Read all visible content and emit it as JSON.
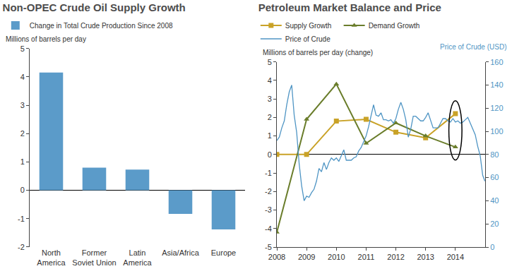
{
  "chart_data": [
    {
      "type": "bar",
      "title": "Non-OPEC Crude Oil Supply Growth",
      "ylabel": "Millions of barrels per day",
      "categories": [
        "North America",
        "Former Soviet Union",
        "Latin America",
        "Asia/Africa",
        "Europe"
      ],
      "series": [
        {
          "name": "Change in Total Crude Production Since 2008",
          "color": "#5b9bc9",
          "values": [
            4.15,
            0.8,
            0.73,
            -0.83,
            -1.38
          ]
        }
      ],
      "ylim": [
        -2,
        5
      ],
      "yticks": [
        -2,
        -1,
        0,
        1,
        2,
        3,
        4,
        5
      ],
      "grid": false,
      "legend": "top left"
    },
    {
      "type": "line",
      "title": "Petroleum Market Balance and Price",
      "ylabel": "Millions of barrels per day (change)",
      "y2label": "Price of Crude (USD)",
      "xlim": [
        2008,
        2015
      ],
      "xticks": [
        2008,
        2009,
        2010,
        2011,
        2012,
        2013,
        2014
      ],
      "ylim": [
        -5,
        5
      ],
      "yticks": [
        -5,
        -4,
        -3,
        -2,
        -1,
        0,
        1,
        2,
        3,
        4,
        5
      ],
      "y2lim": [
        0,
        160
      ],
      "y2ticks": [
        0,
        20,
        40,
        60,
        80,
        100,
        120,
        140,
        160
      ],
      "grid": false,
      "legend": "top left",
      "series": [
        {
          "name": "Supply Growth",
          "color": "#c9a227",
          "type": "line",
          "marker": "square",
          "x": [
            2008,
            2009,
            2010,
            2011,
            2012,
            2013,
            2014
          ],
          "values": [
            0,
            0,
            1.8,
            1.9,
            1.2,
            0.9,
            2.2
          ]
        },
        {
          "name": "Demand Growth",
          "color": "#6a7d2b",
          "type": "line",
          "marker": "triangle",
          "x": [
            2008,
            2009,
            2010,
            2011,
            2012,
            2013,
            2014
          ],
          "values": [
            -4.2,
            1.9,
            3.8,
            0.6,
            1.7,
            1.0,
            0.4
          ]
        },
        {
          "name": "Price of Crude",
          "color": "#4f95c4",
          "type": "line",
          "axis": "y2",
          "x": [
            2008,
            2008.083,
            2008.167,
            2008.25,
            2008.333,
            2008.417,
            2008.5,
            2008.583,
            2008.667,
            2008.75,
            2008.833,
            2008.917,
            2009,
            2009.083,
            2009.167,
            2009.25,
            2009.333,
            2009.417,
            2009.5,
            2009.583,
            2009.667,
            2009.75,
            2009.833,
            2009.917,
            2010,
            2010.083,
            2010.167,
            2010.25,
            2010.333,
            2010.417,
            2010.5,
            2010.583,
            2010.667,
            2010.75,
            2010.833,
            2010.917,
            2011,
            2011.083,
            2011.167,
            2011.25,
            2011.333,
            2011.417,
            2011.5,
            2011.583,
            2011.667,
            2011.75,
            2011.833,
            2011.917,
            2012,
            2012.083,
            2012.167,
            2012.25,
            2012.333,
            2012.417,
            2012.5,
            2012.583,
            2012.667,
            2012.75,
            2012.833,
            2012.917,
            2013,
            2013.083,
            2013.167,
            2013.25,
            2013.333,
            2013.417,
            2013.5,
            2013.583,
            2013.667,
            2013.75,
            2013.833,
            2013.917,
            2014,
            2014.083,
            2014.167,
            2014.25,
            2014.333,
            2014.417,
            2014.5,
            2014.583,
            2014.667,
            2014.75,
            2014.833,
            2014.917,
            2014.99
          ],
          "values": [
            92,
            95,
            103,
            109,
            123,
            134,
            140,
            114,
            99,
            72,
            53,
            40,
            44,
            43,
            47,
            50,
            57,
            68,
            65,
            73,
            67,
            73,
            77,
            75,
            77,
            74,
            79,
            84,
            75,
            75,
            75,
            77,
            78,
            83,
            86,
            91,
            96,
            104,
            114,
            123,
            114,
            113,
            116,
            110,
            110,
            109,
            110,
            107,
            111,
            119,
            125,
            119,
            110,
            95,
            102,
            113,
            113,
            111,
            109,
            109,
            112,
            116,
            109,
            103,
            103,
            103,
            107,
            111,
            111,
            109,
            108,
            111,
            108,
            109,
            107,
            108,
            110,
            112,
            107,
            102,
            97,
            87,
            79,
            62,
            57
          ]
        }
      ]
    }
  ]
}
